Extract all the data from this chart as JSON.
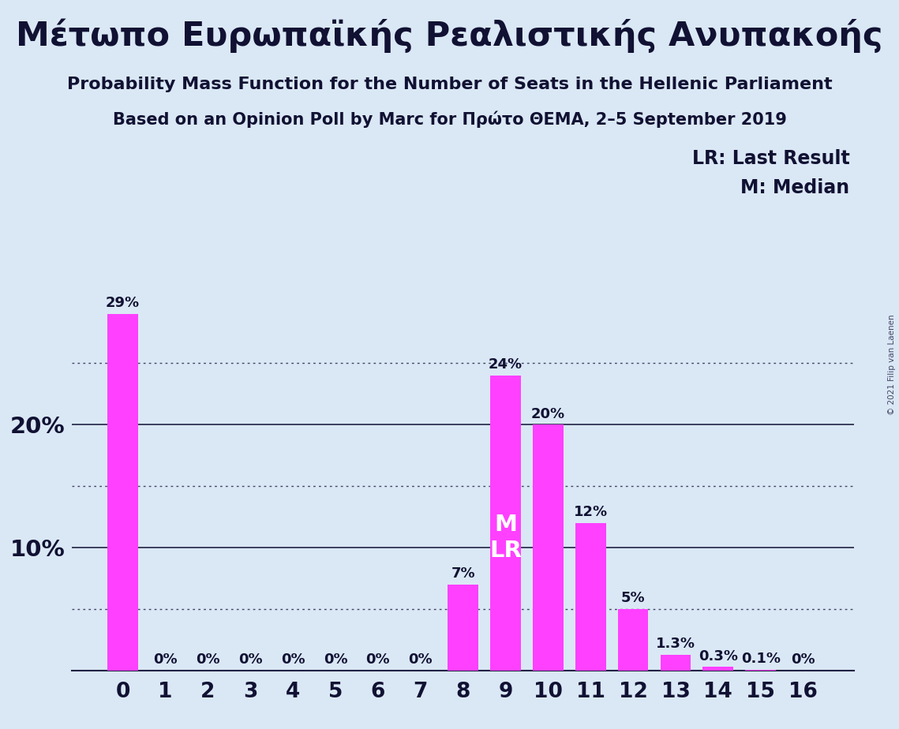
{
  "title_greek": "Μέτωπο Ευρωπαϊκής Ρεαλιστικής Ανυπακοής",
  "subtitle1": "Probability Mass Function for the Number of Seats in the Hellenic Parliament",
  "subtitle2": "Based on an Opinion Poll by Marc for Πρώτο ΘΕΜΑ, 2–5 September 2019",
  "copyright_text": "© 2021 Filip van Laenen",
  "legend_lr": "LR: Last Result",
  "legend_m": "M: Median",
  "categories": [
    0,
    1,
    2,
    3,
    4,
    5,
    6,
    7,
    8,
    9,
    10,
    11,
    12,
    13,
    14,
    15,
    16
  ],
  "values": [
    29,
    0,
    0,
    0,
    0,
    0,
    0,
    0,
    7,
    24,
    20,
    12,
    5,
    1.3,
    0.3,
    0.1,
    0
  ],
  "bar_color": "#FF40FF",
  "background_color": "#DAE8F5",
  "label_color": "#111133",
  "ylim": [
    0,
    32
  ],
  "grid_solid": [
    10,
    20
  ],
  "grid_dotted": [
    5,
    15,
    25
  ],
  "bar_width": 0.72
}
